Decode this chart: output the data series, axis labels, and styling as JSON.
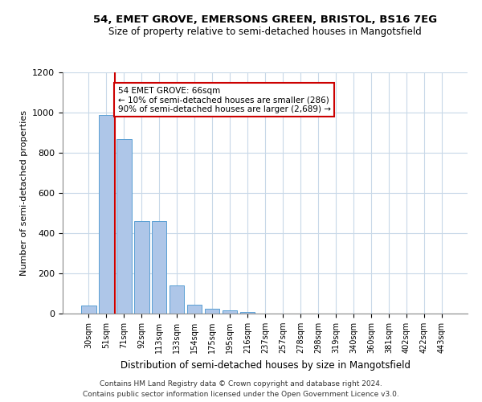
{
  "title_line1": "54, EMET GROVE, EMERSONS GREEN, BRISTOL, BS16 7EG",
  "title_line2": "Size of property relative to semi-detached houses in Mangotsfield",
  "xlabel": "Distribution of semi-detached houses by size in Mangotsfield",
  "ylabel": "Number of semi-detached properties",
  "footer_line1": "Contains HM Land Registry data © Crown copyright and database right 2024.",
  "footer_line2": "Contains public sector information licensed under the Open Government Licence v3.0.",
  "bin_labels": [
    "30sqm",
    "51sqm",
    "71sqm",
    "92sqm",
    "113sqm",
    "133sqm",
    "154sqm",
    "175sqm",
    "195sqm",
    "216sqm",
    "237sqm",
    "257sqm",
    "278sqm",
    "298sqm",
    "319sqm",
    "340sqm",
    "360sqm",
    "381sqm",
    "402sqm",
    "422sqm",
    "443sqm"
  ],
  "bar_values": [
    42,
    990,
    870,
    460,
    460,
    140,
    45,
    25,
    15,
    8,
    0,
    0,
    0,
    0,
    0,
    0,
    0,
    0,
    0,
    0,
    0
  ],
  "bar_color": "#aec6e8",
  "bar_edge_color": "#5a9fd4",
  "property_label": "54 EMET GROVE: 66sqm",
  "pct_smaller": 10,
  "count_smaller": 286,
  "pct_larger": 90,
  "count_larger": 2689,
  "vline_color": "#cc0000",
  "annotation_box_color": "#ffffff",
  "annotation_box_edge": "#cc0000",
  "ylim": [
    0,
    1200
  ],
  "yticks": [
    0,
    200,
    400,
    600,
    800,
    1000,
    1200
  ],
  "grid_color": "#c8d8e8",
  "background_color": "#ffffff",
  "vline_x": 1.5
}
